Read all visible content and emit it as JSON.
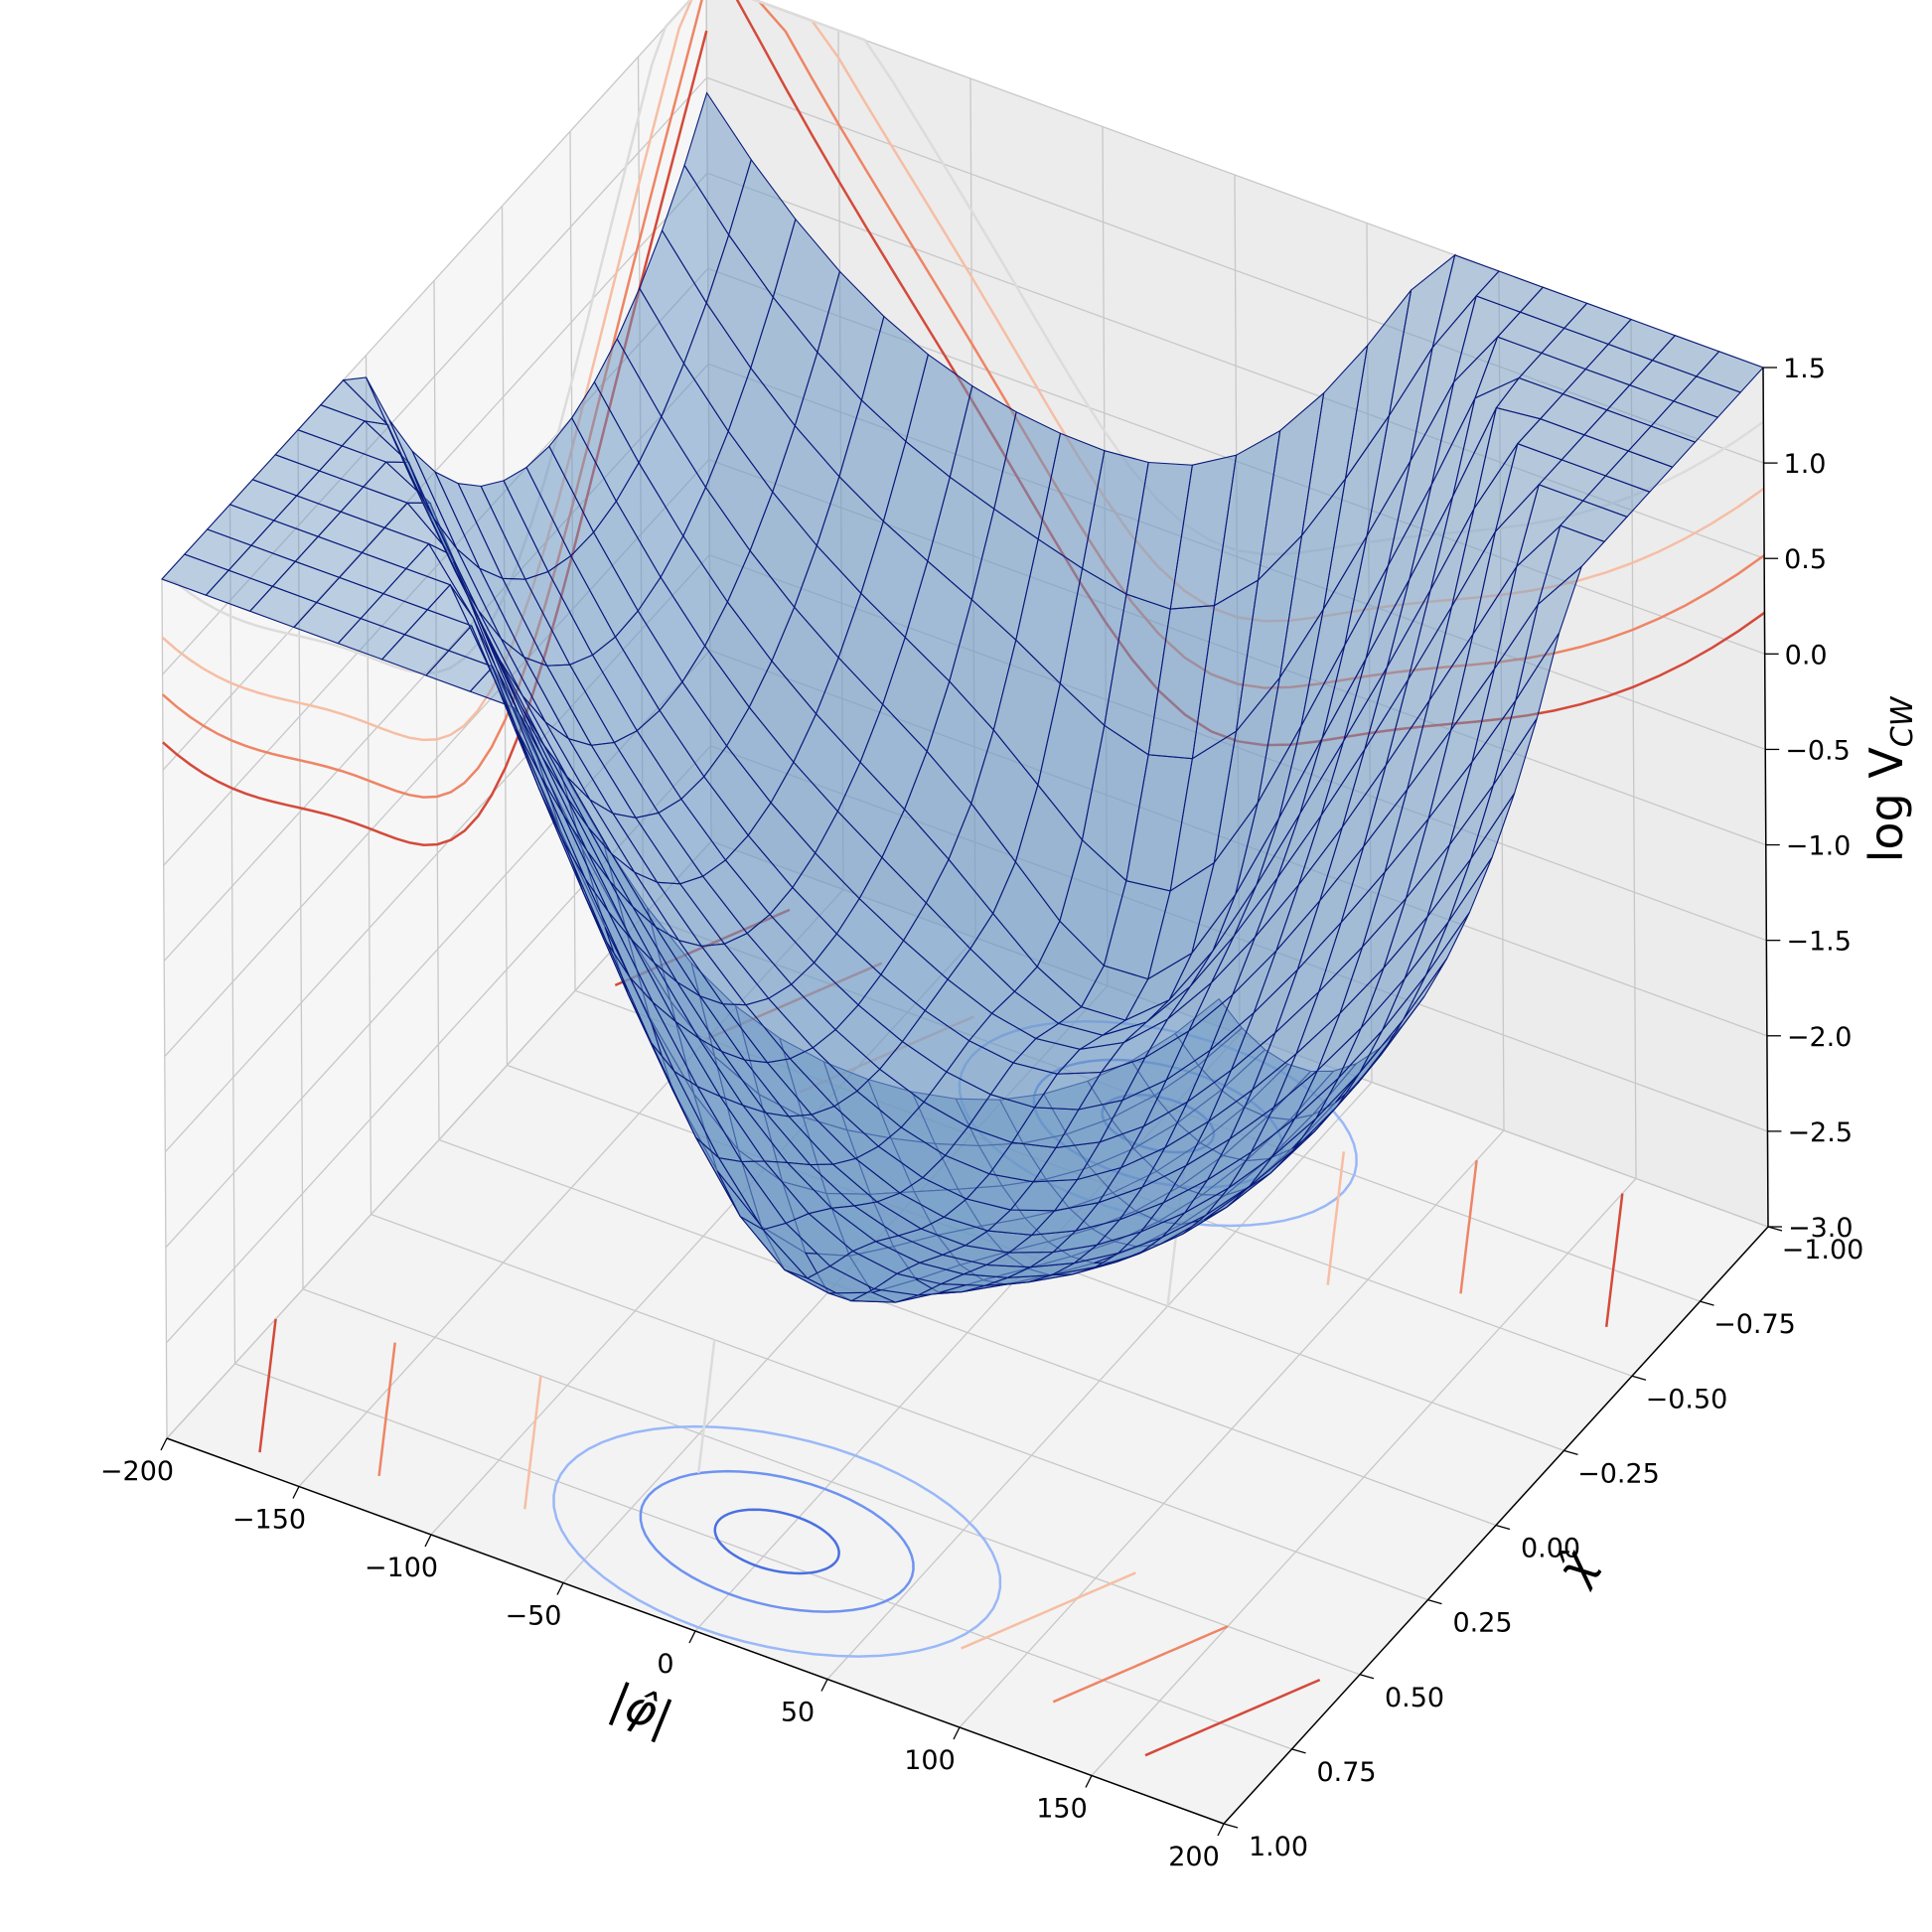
{
  "chart_data": {
    "type": "surface3d",
    "title": "",
    "xlabel": "|φ̂|",
    "ylabel": "χ̂",
    "zlabel_main": "log V",
    "zlabel_sub": "CW",
    "xlim": [
      -200,
      200
    ],
    "ylim": [
      -1.0,
      1.0
    ],
    "zlim": [
      -3.0,
      1.5
    ],
    "x_ticks": [
      "−200",
      "−150",
      "−100",
      "−50",
      "0",
      "50",
      "100",
      "150",
      "200"
    ],
    "y_ticks": [
      "−1.00",
      "−0.75",
      "−0.50",
      "−0.25",
      "0.00",
      "0.25",
      "0.50",
      "0.75",
      "1.00"
    ],
    "z_ticks": [
      "−3.0",
      "−2.5",
      "−2.0",
      "−1.5",
      "−1.0",
      "−0.5",
      "0.0",
      "0.5",
      "1.0",
      "1.5"
    ],
    "x_tick_values": [
      -200,
      -150,
      -100,
      -50,
      0,
      50,
      100,
      150,
      200
    ],
    "y_tick_values": [
      -1.0,
      -0.75,
      -0.5,
      -0.25,
      0.0,
      0.25,
      0.5,
      0.75,
      1.0
    ],
    "z_tick_values": [
      -3.0,
      -2.5,
      -2.0,
      -1.5,
      -1.0,
      -0.5,
      0.0,
      0.5,
      1.0,
      1.5
    ],
    "minima": [
      {
        "x": 0,
        "y": -0.7,
        "z": -2.9
      },
      {
        "x": 0,
        "y": 0.7,
        "z": -2.0
      }
    ],
    "corner_values": [
      {
        "x": -200,
        "y": -1.0,
        "z": 1.1
      },
      {
        "x": -200,
        "y": 1.0,
        "z": 1.45
      },
      {
        "x": 200,
        "y": -1.0,
        "z": 1.45
      },
      {
        "x": 200,
        "y": 1.0,
        "z": 1.1
      }
    ],
    "surface": {
      "x_samples": 25,
      "y_samples": 25
    },
    "contour_projections": [
      "z-floor",
      "x-wall",
      "y-wall"
    ],
    "contour_cmap": "coolwarm",
    "grid": true
  },
  "colors": {
    "surface_fill": "#6a96c4",
    "wire": "#0a1a7a",
    "pane_floor": "#f3f3f3",
    "pane_back": "#ececec",
    "pane_side": "#f6f6f6",
    "gridline": "#c8c8c8"
  }
}
